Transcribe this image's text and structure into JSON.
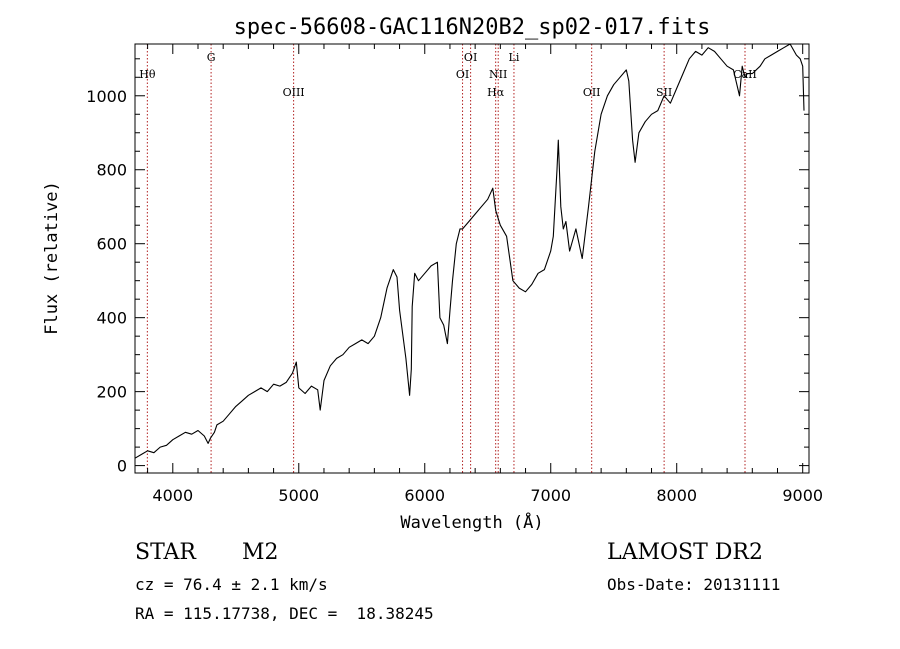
{
  "chart_data": {
    "type": "line",
    "title": "spec-56608-GAC116N20B2_sp02-017.fits",
    "xlabel": "Wavelength (Å)",
    "ylabel": "Flux (relative)",
    "xlim": [
      3700,
      9050
    ],
    "ylim": [
      -20,
      1140
    ],
    "xticks": [
      4000,
      5000,
      6000,
      7000,
      8000,
      9000
    ],
    "yticks": [
      0,
      200,
      400,
      600,
      800,
      1000
    ],
    "grid": false,
    "series": [
      {
        "name": "spectrum",
        "x": [
          3700,
          3750,
          3800,
          3850,
          3900,
          3950,
          4000,
          4050,
          4100,
          4150,
          4200,
          4250,
          4280,
          4300,
          4330,
          4350,
          4400,
          4450,
          4500,
          4550,
          4600,
          4650,
          4700,
          4750,
          4800,
          4850,
          4900,
          4950,
          4980,
          5000,
          5050,
          5100,
          5150,
          5170,
          5200,
          5250,
          5300,
          5350,
          5400,
          5450,
          5500,
          5550,
          5600,
          5650,
          5700,
          5750,
          5780,
          5800,
          5850,
          5880,
          5893,
          5900,
          5920,
          5950,
          6000,
          6050,
          6100,
          6120,
          6150,
          6180,
          6200,
          6220,
          6250,
          6280,
          6300,
          6350,
          6400,
          6450,
          6500,
          6540,
          6563,
          6600,
          6650,
          6700,
          6750,
          6800,
          6850,
          6900,
          6950,
          7000,
          7020,
          7050,
          7060,
          7080,
          7100,
          7120,
          7150,
          7200,
          7250,
          7300,
          7350,
          7400,
          7450,
          7500,
          7550,
          7600,
          7620,
          7650,
          7670,
          7700,
          7750,
          7800,
          7850,
          7900,
          7950,
          8000,
          8050,
          8100,
          8150,
          8200,
          8250,
          8300,
          8350,
          8400,
          8450,
          8498,
          8520,
          8542,
          8560,
          8600,
          8662,
          8700,
          8750,
          8800,
          8850,
          8900,
          8950,
          8980,
          9000,
          9010
        ],
        "y": [
          20,
          30,
          40,
          35,
          50,
          55,
          70,
          80,
          90,
          85,
          95,
          80,
          60,
          75,
          90,
          110,
          120,
          140,
          160,
          175,
          190,
          200,
          210,
          200,
          220,
          215,
          225,
          250,
          280,
          210,
          195,
          215,
          205,
          150,
          230,
          270,
          290,
          300,
          320,
          330,
          340,
          330,
          350,
          400,
          480,
          530,
          510,
          420,
          290,
          190,
          260,
          430,
          520,
          500,
          520,
          540,
          550,
          400,
          380,
          330,
          420,
          500,
          600,
          640,
          640,
          660,
          680,
          700,
          720,
          750,
          690,
          650,
          620,
          500,
          480,
          470,
          490,
          520,
          530,
          580,
          620,
          800,
          880,
          700,
          640,
          660,
          580,
          640,
          560,
          700,
          850,
          950,
          1000,
          1030,
          1050,
          1070,
          1040,
          880,
          820,
          900,
          930,
          950,
          960,
          1000,
          980,
          1020,
          1060,
          1100,
          1120,
          1110,
          1130,
          1120,
          1100,
          1080,
          1070,
          1000,
          1080,
          1050,
          1060,
          1060,
          1080,
          1100,
          1110,
          1120,
          1130,
          1140,
          1110,
          1100,
          1080,
          960
        ]
      }
    ],
    "lines": [
      {
        "label": "Hθ",
        "x": 3798,
        "row": "low"
      },
      {
        "label": "G",
        "x": 4304,
        "row": "high"
      },
      {
        "label": "OIII",
        "x": 4959,
        "row": "mid"
      },
      {
        "label": "OI",
        "x": 6300,
        "row": "low"
      },
      {
        "label": "OI",
        "x": 6364,
        "row": "high"
      },
      {
        "label": "Hα",
        "x": 6563,
        "row": "mid"
      },
      {
        "label": "NII",
        "x": 6583,
        "row": "low"
      },
      {
        "label": "Li",
        "x": 6708,
        "row": "high"
      },
      {
        "label": "OII",
        "x": 7325,
        "row": "mid"
      },
      {
        "label": "SII",
        "x": 7900,
        "row": "mid"
      },
      {
        "label": "CaII",
        "x": 8542,
        "row": "low"
      }
    ]
  },
  "footer": {
    "object_class": "STAR",
    "subclass": "M2",
    "survey": "LAMOST DR2",
    "redshift": "cz = 76.4 ± 2.1 km/s",
    "obs_date": "Obs-Date: 20131111",
    "coords": "RA = 115.17738, DEC =  18.38245"
  }
}
